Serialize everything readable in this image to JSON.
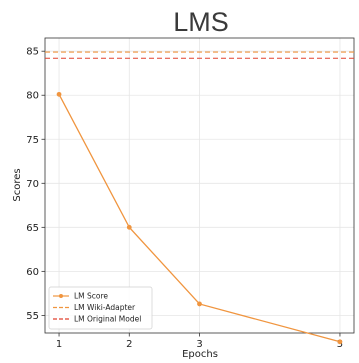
{
  "chart_data": {
    "type": "line",
    "title": "LMS",
    "xlabel": "Epochs",
    "ylabel": "Scores",
    "xlim": [
      0.8,
      5.2
    ],
    "ylim": [
      53,
      86.5
    ],
    "xticks": [
      1,
      2,
      3,
      5
    ],
    "yticks": [
      55,
      60,
      65,
      70,
      75,
      80,
      85
    ],
    "grid": true,
    "legend_position": "lower-left",
    "series": [
      {
        "name": "LM Score",
        "style": "solid-marker",
        "color": "#f0953f",
        "x": [
          1,
          2,
          3,
          5
        ],
        "y": [
          80.1,
          65.0,
          56.3,
          52.0
        ]
      },
      {
        "name": "LM Wiki-Adapter",
        "style": "dashed",
        "color": "#f0953f",
        "y": 84.9
      },
      {
        "name": "LM Original Model",
        "style": "dashed",
        "color": "#e0402e",
        "y": 84.2
      }
    ]
  }
}
